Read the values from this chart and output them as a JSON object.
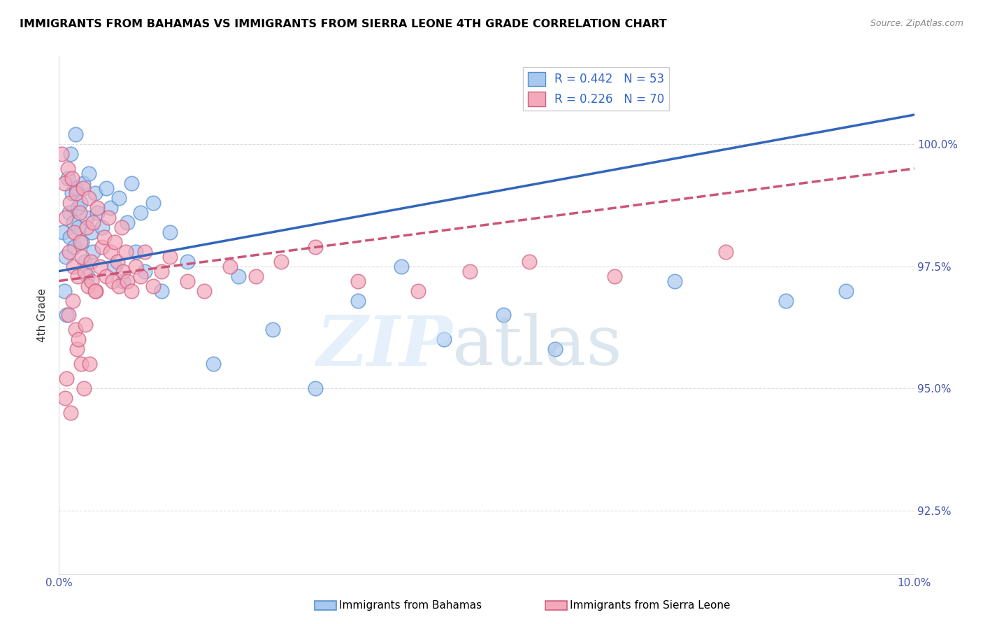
{
  "title": "IMMIGRANTS FROM BAHAMAS VS IMMIGRANTS FROM SIERRA LEONE 4TH GRADE CORRELATION CHART",
  "source": "Source: ZipAtlas.com",
  "ylabel": "4th Grade",
  "y_ticks": [
    92.5,
    95.0,
    97.5,
    100.0
  ],
  "y_tick_labels": [
    "92.5%",
    "95.0%",
    "97.5%",
    "100.0%"
  ],
  "x_ticks": [
    0.0,
    2.5,
    5.0,
    7.5,
    10.0
  ],
  "x_tick_labels": [
    "0.0%",
    "",
    "",
    "",
    "10.0%"
  ],
  "x_range": [
    0.0,
    10.0
  ],
  "y_range": [
    91.2,
    101.8
  ],
  "legend_blue_r": "R = 0.442",
  "legend_blue_n": "N = 53",
  "legend_pink_r": "R = 0.226",
  "legend_pink_n": "N = 70",
  "legend_label_blue": "Immigrants from Bahamas",
  "legend_label_pink": "Immigrants from Sierra Leone",
  "blue_color": "#A8C8F0",
  "pink_color": "#F4A8BC",
  "blue_edge_color": "#5590D0",
  "pink_edge_color": "#D06080",
  "blue_line_color": "#3366BB",
  "pink_line_color": "#CC5577",
  "blue_x": [
    0.05,
    0.08,
    0.1,
    0.12,
    0.13,
    0.15,
    0.17,
    0.18,
    0.2,
    0.22,
    0.23,
    0.25,
    0.27,
    0.28,
    0.3,
    0.32,
    0.33,
    0.35,
    0.38,
    0.4,
    0.42,
    0.45,
    0.5,
    0.55,
    0.6,
    0.65,
    0.7,
    0.75,
    0.8,
    0.85,
    0.9,
    0.95,
    1.0,
    1.1,
    1.2,
    1.3,
    1.5,
    1.8,
    2.1,
    2.5,
    3.0,
    3.5,
    4.0,
    4.5,
    5.2,
    5.8,
    7.2,
    8.5,
    9.2,
    0.06,
    0.09,
    0.14,
    0.19
  ],
  "blue_y": [
    98.2,
    97.7,
    99.3,
    98.6,
    98.1,
    99.0,
    98.4,
    97.9,
    99.1,
    98.7,
    98.3,
    98.8,
    98.0,
    99.2,
    97.6,
    98.5,
    97.3,
    99.4,
    98.2,
    97.8,
    99.0,
    98.6,
    98.3,
    99.1,
    98.7,
    97.5,
    98.9,
    97.2,
    98.4,
    99.2,
    97.8,
    98.6,
    97.4,
    98.8,
    97.0,
    98.2,
    97.6,
    95.5,
    97.3,
    96.2,
    95.0,
    96.8,
    97.5,
    96.0,
    96.5,
    95.8,
    97.2,
    96.8,
    97.0,
    97.0,
    96.5,
    99.8,
    100.2
  ],
  "pink_x": [
    0.03,
    0.06,
    0.08,
    0.1,
    0.12,
    0.13,
    0.15,
    0.17,
    0.18,
    0.2,
    0.22,
    0.24,
    0.25,
    0.27,
    0.28,
    0.3,
    0.32,
    0.34,
    0.35,
    0.37,
    0.38,
    0.4,
    0.43,
    0.45,
    0.48,
    0.5,
    0.53,
    0.55,
    0.58,
    0.6,
    0.63,
    0.65,
    0.68,
    0.7,
    0.73,
    0.75,
    0.78,
    0.8,
    0.85,
    0.9,
    0.95,
    1.0,
    1.1,
    1.2,
    1.3,
    1.5,
    1.7,
    2.0,
    2.3,
    2.6,
    3.0,
    3.5,
    4.2,
    4.8,
    5.5,
    6.5,
    7.8,
    0.07,
    0.09,
    0.11,
    0.14,
    0.16,
    0.19,
    0.21,
    0.23,
    0.26,
    0.29,
    0.31,
    0.36,
    0.42
  ],
  "pink_y": [
    99.8,
    99.2,
    98.5,
    99.5,
    97.8,
    98.8,
    99.3,
    97.5,
    98.2,
    99.0,
    97.3,
    98.6,
    98.0,
    97.7,
    99.1,
    97.4,
    98.3,
    97.1,
    98.9,
    97.6,
    97.2,
    98.4,
    97.0,
    98.7,
    97.5,
    97.9,
    98.1,
    97.3,
    98.5,
    97.8,
    97.2,
    98.0,
    97.6,
    97.1,
    98.3,
    97.4,
    97.8,
    97.2,
    97.0,
    97.5,
    97.3,
    97.8,
    97.1,
    97.4,
    97.7,
    97.2,
    97.0,
    97.5,
    97.3,
    97.6,
    97.9,
    97.2,
    97.0,
    97.4,
    97.6,
    97.3,
    97.8,
    94.8,
    95.2,
    96.5,
    94.5,
    96.8,
    96.2,
    95.8,
    96.0,
    95.5,
    95.0,
    96.3,
    95.5,
    97.0
  ],
  "blue_line_x0": 0.0,
  "blue_line_y0": 97.4,
  "blue_line_x1": 10.0,
  "blue_line_y1": 100.6,
  "pink_line_x0": 0.0,
  "pink_line_y0": 97.2,
  "pink_line_x1": 10.0,
  "pink_line_y1": 99.5
}
